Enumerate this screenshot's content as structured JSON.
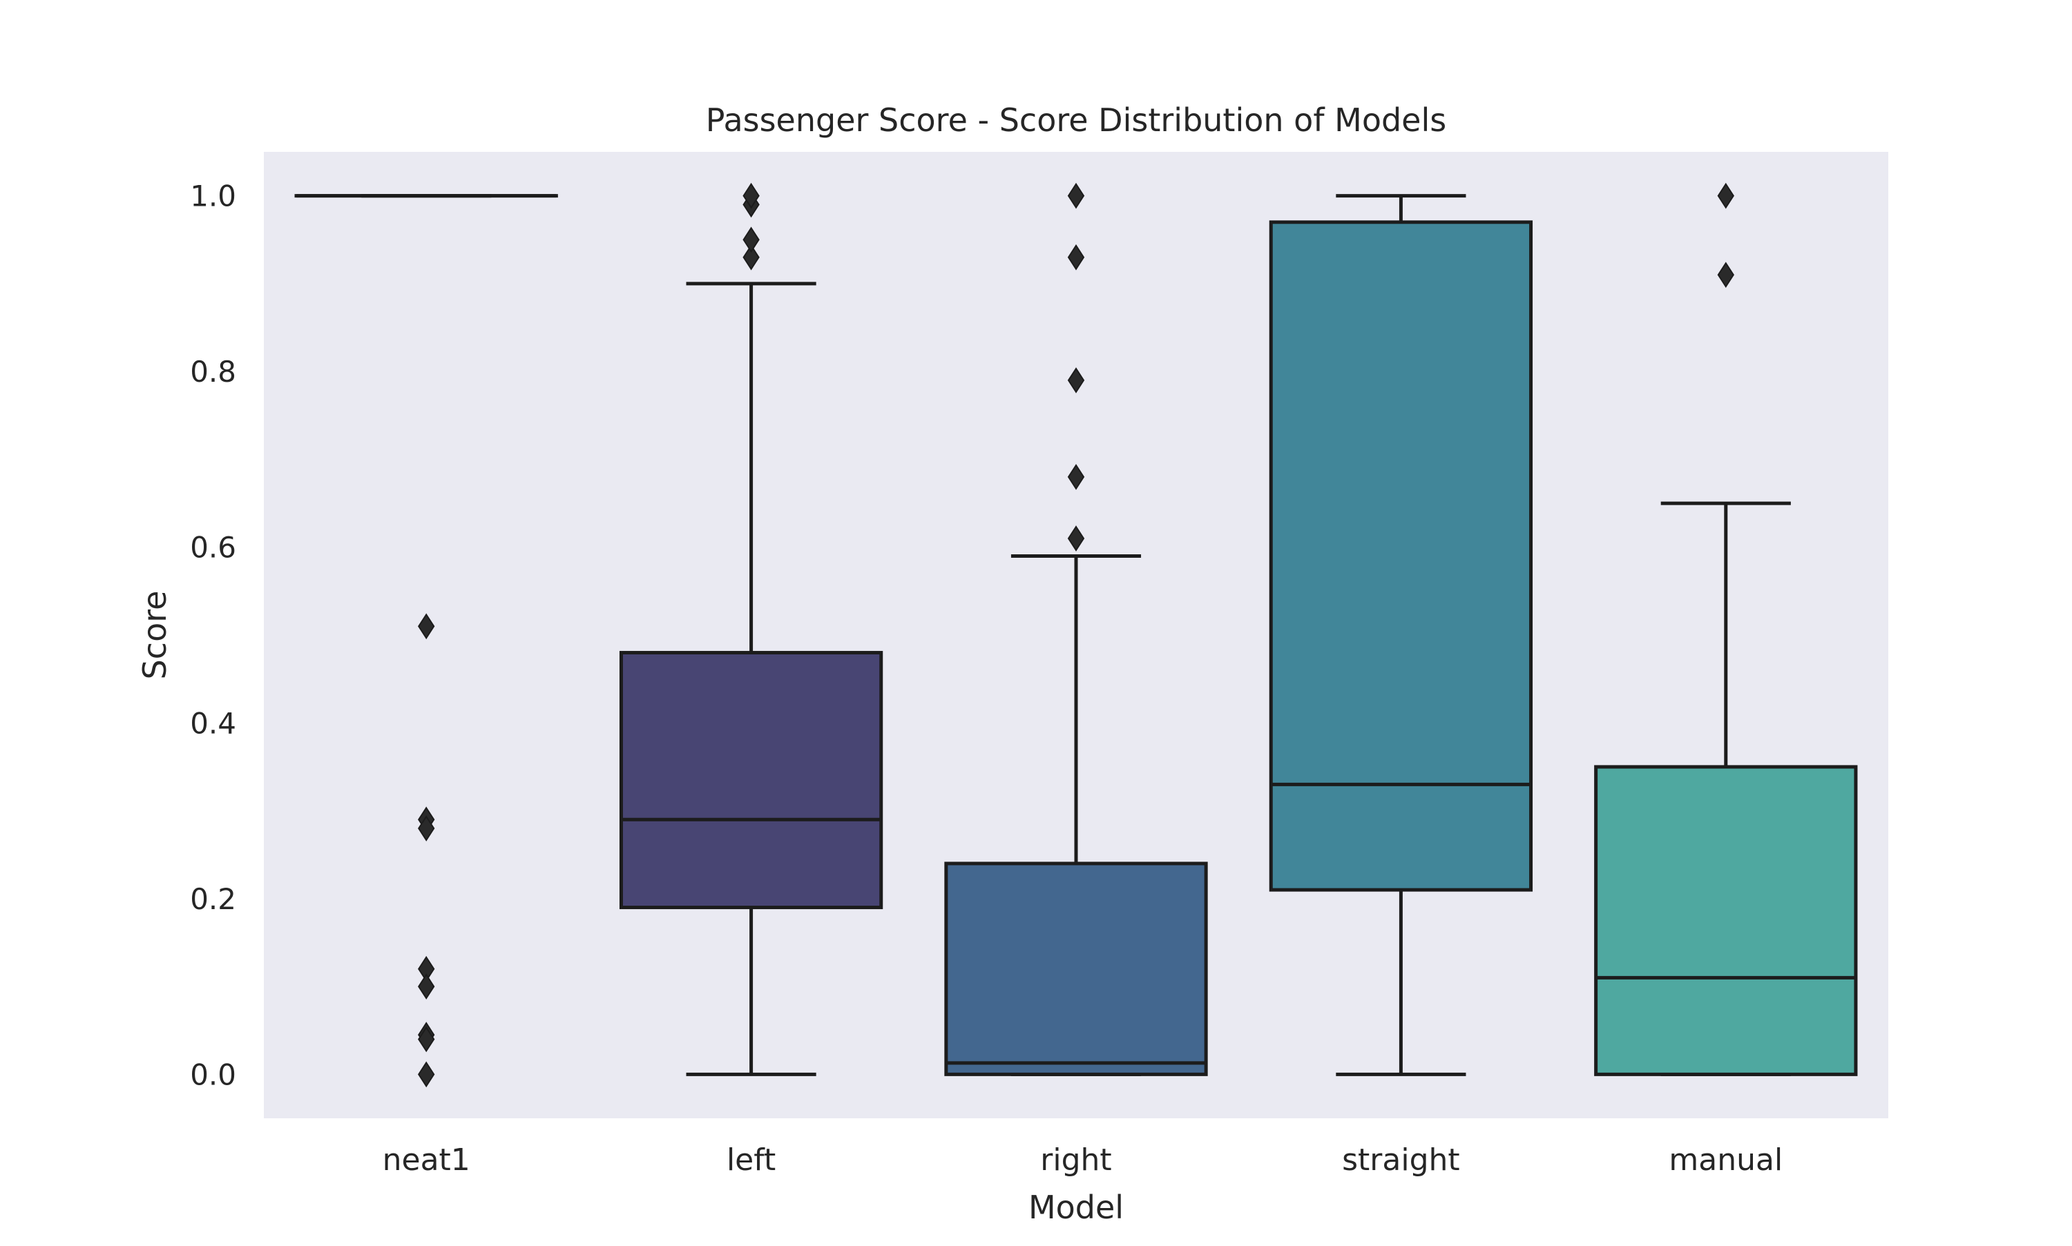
{
  "chart_data": {
    "type": "box",
    "title": "Passenger Score - Score Distribution of Models",
    "xlabel": "Model",
    "ylabel": "Score",
    "ylim": [
      -0.05,
      1.05
    ],
    "yticks": [
      0.0,
      0.2,
      0.4,
      0.6,
      0.8,
      1.0
    ],
    "ytick_labels": [
      "0.0",
      "0.2",
      "0.4",
      "0.6",
      "0.8",
      "1.0"
    ],
    "grid": false,
    "background": "#eaeaf2",
    "categories": [
      "neat1",
      "left",
      "right",
      "straight",
      "manual"
    ],
    "boxes": [
      {
        "name": "neat1",
        "whisker_low": 1.0,
        "q1": 1.0,
        "median": 1.0,
        "q3": 1.0,
        "whisker_high": 1.0,
        "outliers": [
          0.51,
          0.29,
          0.28,
          0.12,
          0.1,
          0.045,
          0.04,
          0.0
        ],
        "color": "#3f3a7a"
      },
      {
        "name": "left",
        "whisker_low": 0.0,
        "q1": 0.19,
        "median": 0.29,
        "q3": 0.48,
        "whisker_high": 0.9,
        "outliers": [
          0.93,
          0.95,
          0.99,
          1.0
        ],
        "color": "#484573"
      },
      {
        "name": "right",
        "whisker_low": 0.0,
        "q1": 0.0,
        "median": 0.013,
        "q3": 0.24,
        "whisker_high": 0.59,
        "outliers": [
          0.61,
          0.68,
          0.79,
          0.93,
          1.0
        ],
        "color": "#43678f"
      },
      {
        "name": "straight",
        "whisker_low": 0.0,
        "q1": 0.21,
        "median": 0.33,
        "q3": 0.97,
        "whisker_high": 1.0,
        "outliers": [],
        "color": "#418699"
      },
      {
        "name": "manual",
        "whisker_low": 0.0,
        "q1": 0.0,
        "median": 0.11,
        "q3": 0.35,
        "whisker_high": 0.65,
        "outliers": [
          0.91,
          1.0
        ],
        "color": "#4fa8a0"
      }
    ],
    "line_color": "#1c1c1c"
  }
}
